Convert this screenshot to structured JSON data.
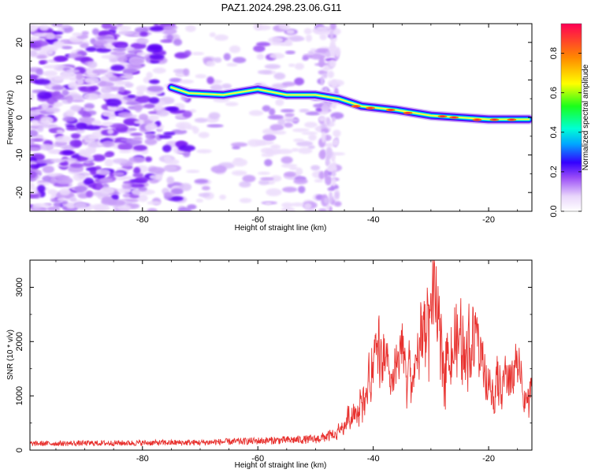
{
  "title": "PAZ1.2024.298.23.06.G11",
  "chart_data": [
    {
      "type": "heatmap",
      "xlabel": "Height of straight line (km)",
      "ylabel": "Frequency (Hz)",
      "xlim": [
        -99.5,
        -12.5
      ],
      "ylim": [
        -25,
        25
      ],
      "xticks": [
        -80,
        -60,
        -40,
        -20
      ],
      "yticks": [
        -20,
        -10,
        0,
        10,
        20
      ],
      "colorbar": {
        "label": "Normalized spectral amplitude",
        "range": [
          0,
          0.95
        ],
        "ticks": [
          0.0,
          0.2,
          0.4,
          0.6,
          0.8
        ]
      },
      "ridge": [
        {
          "x": -75,
          "y": 8
        },
        {
          "x": -72,
          "y": 6.5
        },
        {
          "x": -66,
          "y": 6
        },
        {
          "x": -60,
          "y": 7.5
        },
        {
          "x": -55,
          "y": 6
        },
        {
          "x": -50,
          "y": 6
        },
        {
          "x": -46,
          "y": 5
        },
        {
          "x": -42,
          "y": 3
        },
        {
          "x": -36,
          "y": 2
        },
        {
          "x": -30,
          "y": 0.5
        },
        {
          "x": -20,
          "y": -0.5
        },
        {
          "x": -13,
          "y": -0.5
        }
      ]
    },
    {
      "type": "line",
      "xlabel": "Height of straight line (km)",
      "ylabel": "SNR (10 * v/v)",
      "xlim": [
        -99.5,
        -12.5
      ],
      "ylim": [
        0,
        3500
      ],
      "xticks": [
        -80,
        -60,
        -40,
        -20
      ],
      "yticks": [
        0,
        1000,
        2000,
        3000
      ],
      "series": [
        {
          "color": "#e8322f",
          "envelope": [
            {
              "x": -99.5,
              "y": 120
            },
            {
              "x": -70,
              "y": 140
            },
            {
              "x": -60,
              "y": 170
            },
            {
              "x": -50,
              "y": 200
            },
            {
              "x": -47,
              "y": 280
            },
            {
              "x": -45,
              "y": 600
            },
            {
              "x": -43,
              "y": 1000
            },
            {
              "x": -41,
              "y": 1400
            },
            {
              "x": -39,
              "y": 2400
            },
            {
              "x": -37,
              "y": 1500
            },
            {
              "x": -35,
              "y": 2200
            },
            {
              "x": -33,
              "y": 1700
            },
            {
              "x": -31,
              "y": 3000
            },
            {
              "x": -29.5,
              "y": 3300
            },
            {
              "x": -28,
              "y": 2400
            },
            {
              "x": -26,
              "y": 2400
            },
            {
              "x": -24,
              "y": 2600
            },
            {
              "x": -22,
              "y": 2700
            },
            {
              "x": -20,
              "y": 1400
            },
            {
              "x": -18,
              "y": 1500
            },
            {
              "x": -15,
              "y": 2000
            },
            {
              "x": -13,
              "y": 1100
            },
            {
              "x": -12.5,
              "y": 1500
            }
          ]
        }
      ]
    }
  ]
}
